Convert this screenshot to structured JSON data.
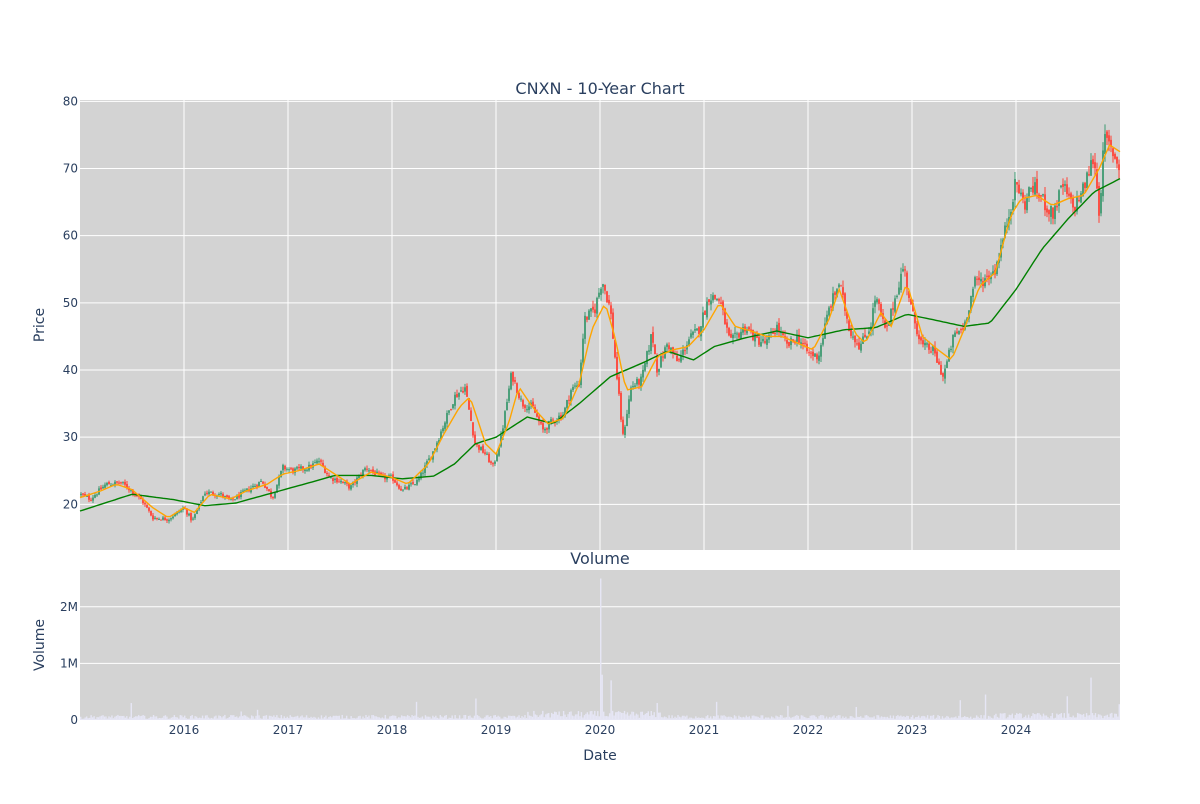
{
  "chart_data": [
    {
      "type": "candlestick",
      "title": "CNXN - 10-Year Chart",
      "ylabel": "Price",
      "xlim": [
        2015.0,
        2025.0
      ],
      "ylim": [
        13.2,
        80.2
      ],
      "yticks": [
        20,
        30,
        40,
        50,
        60,
        70,
        80
      ],
      "xticks": [
        2016,
        2017,
        2018,
        2019,
        2020,
        2021,
        2022,
        2023,
        2024
      ],
      "grid": true,
      "background": "#d3d3d3",
      "colors": {
        "up": "#3d9970",
        "down": "#ff4136",
        "ma_short": "#ffa500",
        "ma_long": "#008000"
      },
      "price_path": [
        [
          2015.0,
          21.5
        ],
        [
          2015.1,
          20.8
        ],
        [
          2015.25,
          23.0
        ],
        [
          2015.4,
          23.2
        ],
        [
          2015.5,
          22.0
        ],
        [
          2015.6,
          20.5
        ],
        [
          2015.7,
          18.0
        ],
        [
          2015.85,
          17.8
        ],
        [
          2016.0,
          19.5
        ],
        [
          2016.08,
          17.5
        ],
        [
          2016.2,
          21.8
        ],
        [
          2016.35,
          21.5
        ],
        [
          2016.45,
          20.5
        ],
        [
          2016.6,
          22.0
        ],
        [
          2016.75,
          23.5
        ],
        [
          2016.85,
          21.0
        ],
        [
          2016.95,
          25.5
        ],
        [
          2017.05,
          25.0
        ],
        [
          2017.2,
          25.5
        ],
        [
          2017.3,
          26.5
        ],
        [
          2017.4,
          24.0
        ],
        [
          2017.5,
          23.5
        ],
        [
          2017.6,
          22.5
        ],
        [
          2017.75,
          25.5
        ],
        [
          2017.9,
          24.0
        ],
        [
          2018.0,
          24.0
        ],
        [
          2018.1,
          22.0
        ],
        [
          2018.25,
          23.5
        ],
        [
          2018.4,
          28.0
        ],
        [
          2018.5,
          32.0
        ],
        [
          2018.6,
          36.0
        ],
        [
          2018.7,
          37.5
        ],
        [
          2018.8,
          29.0
        ],
        [
          2018.9,
          27.5
        ],
        [
          2018.97,
          25.5
        ],
        [
          2019.05,
          30.0
        ],
        [
          2019.15,
          39.5
        ],
        [
          2019.25,
          35.0
        ],
        [
          2019.35,
          34.5
        ],
        [
          2019.45,
          31.0
        ],
        [
          2019.55,
          32.5
        ],
        [
          2019.65,
          33.5
        ],
        [
          2019.72,
          37.0
        ],
        [
          2019.8,
          38.0
        ],
        [
          2019.85,
          47.5
        ],
        [
          2019.95,
          49.0
        ],
        [
          2020.02,
          53.5
        ],
        [
          2020.1,
          49.0
        ],
        [
          2020.15,
          41.0
        ],
        [
          2020.22,
          30.0
        ],
        [
          2020.3,
          37.5
        ],
        [
          2020.4,
          38.5
        ],
        [
          2020.5,
          45.5
        ],
        [
          2020.55,
          40.0
        ],
        [
          2020.65,
          44.0
        ],
        [
          2020.75,
          41.0
        ],
        [
          2020.85,
          44.5
        ],
        [
          2020.95,
          46.0
        ],
        [
          2021.05,
          51.0
        ],
        [
          2021.15,
          50.5
        ],
        [
          2021.25,
          44.0
        ],
        [
          2021.4,
          46.5
        ],
        [
          2021.5,
          44.5
        ],
        [
          2021.6,
          44.0
        ],
        [
          2021.7,
          46.5
        ],
        [
          2021.8,
          43.5
        ],
        [
          2021.9,
          45.0
        ],
        [
          2022.0,
          42.5
        ],
        [
          2022.1,
          42.0
        ],
        [
          2022.2,
          49.0
        ],
        [
          2022.3,
          53.0
        ],
        [
          2022.4,
          46.0
        ],
        [
          2022.5,
          43.5
        ],
        [
          2022.6,
          46.5
        ],
        [
          2022.65,
          51.0
        ],
        [
          2022.75,
          45.5
        ],
        [
          2022.85,
          51.5
        ],
        [
          2022.92,
          55.5
        ],
        [
          2023.0,
          48.5
        ],
        [
          2023.1,
          43.5
        ],
        [
          2023.2,
          43.0
        ],
        [
          2023.3,
          39.0
        ],
        [
          2023.4,
          45.0
        ],
        [
          2023.5,
          46.5
        ],
        [
          2023.6,
          53.0
        ],
        [
          2023.7,
          53.5
        ],
        [
          2023.8,
          55.0
        ],
        [
          2023.9,
          61.0
        ],
        [
          2024.0,
          68.0
        ],
        [
          2024.08,
          64.5
        ],
        [
          2024.15,
          67.5
        ],
        [
          2024.25,
          65.5
        ],
        [
          2024.35,
          63.0
        ],
        [
          2024.45,
          67.5
        ],
        [
          2024.55,
          64.0
        ],
        [
          2024.65,
          67.0
        ],
        [
          2024.75,
          72.0
        ],
        [
          2024.8,
          63.5
        ],
        [
          2024.85,
          74.5
        ],
        [
          2024.93,
          72.5
        ],
        [
          2025.0,
          70.0
        ]
      ],
      "ma_short_path": [
        [
          2015.0,
          21.0
        ],
        [
          2015.2,
          22.0
        ],
        [
          2015.35,
          23.0
        ],
        [
          2015.5,
          22.2
        ],
        [
          2015.7,
          19.5
        ],
        [
          2015.85,
          18.0
        ],
        [
          2016.0,
          19.5
        ],
        [
          2016.1,
          18.8
        ],
        [
          2016.25,
          21.5
        ],
        [
          2016.45,
          20.8
        ],
        [
          2016.6,
          22.0
        ],
        [
          2016.8,
          23.0
        ],
        [
          2016.95,
          24.5
        ],
        [
          2017.1,
          25.0
        ],
        [
          2017.3,
          26.0
        ],
        [
          2017.45,
          24.5
        ],
        [
          2017.6,
          23.0
        ],
        [
          2017.8,
          24.8
        ],
        [
          2018.0,
          24.0
        ],
        [
          2018.15,
          23.0
        ],
        [
          2018.35,
          26.0
        ],
        [
          2018.5,
          30.5
        ],
        [
          2018.65,
          34.5
        ],
        [
          2018.75,
          36.0
        ],
        [
          2018.9,
          29.0
        ],
        [
          2019.0,
          27.5
        ],
        [
          2019.12,
          32.0
        ],
        [
          2019.22,
          37.5
        ],
        [
          2019.35,
          34.5
        ],
        [
          2019.5,
          32.0
        ],
        [
          2019.65,
          32.8
        ],
        [
          2019.8,
          38.0
        ],
        [
          2019.92,
          46.0
        ],
        [
          2020.05,
          50.0
        ],
        [
          2020.15,
          44.5
        ],
        [
          2020.25,
          37.0
        ],
        [
          2020.4,
          37.5
        ],
        [
          2020.55,
          42.0
        ],
        [
          2020.7,
          43.0
        ],
        [
          2020.85,
          43.5
        ],
        [
          2021.0,
          46.0
        ],
        [
          2021.15,
          50.0
        ],
        [
          2021.3,
          46.5
        ],
        [
          2021.45,
          45.8
        ],
        [
          2021.6,
          45.0
        ],
        [
          2021.75,
          45.0
        ],
        [
          2021.9,
          44.0
        ],
        [
          2022.05,
          43.0
        ],
        [
          2022.2,
          47.5
        ],
        [
          2022.3,
          52.0
        ],
        [
          2022.45,
          45.5
        ],
        [
          2022.55,
          44.0
        ],
        [
          2022.7,
          48.5
        ],
        [
          2022.8,
          46.5
        ],
        [
          2022.95,
          53.0
        ],
        [
          2023.1,
          45.0
        ],
        [
          2023.25,
          43.0
        ],
        [
          2023.38,
          41.5
        ],
        [
          2023.5,
          46.0
        ],
        [
          2023.65,
          52.5
        ],
        [
          2023.8,
          54.5
        ],
        [
          2023.95,
          63.0
        ],
        [
          2024.05,
          65.5
        ],
        [
          2024.2,
          66.0
        ],
        [
          2024.35,
          64.5
        ],
        [
          2024.5,
          65.5
        ],
        [
          2024.65,
          66.0
        ],
        [
          2024.8,
          70.0
        ],
        [
          2024.9,
          73.5
        ],
        [
          2025.0,
          72.5
        ]
      ],
      "ma_long_path": [
        [
          2015.0,
          19.0
        ],
        [
          2015.5,
          21.5
        ],
        [
          2015.9,
          20.7
        ],
        [
          2016.2,
          19.8
        ],
        [
          2016.5,
          20.2
        ],
        [
          2016.85,
          21.7
        ],
        [
          2017.2,
          23.2
        ],
        [
          2017.45,
          24.3
        ],
        [
          2017.8,
          24.3
        ],
        [
          2018.1,
          23.8
        ],
        [
          2018.4,
          24.2
        ],
        [
          2018.6,
          26.0
        ],
        [
          2018.8,
          29.0
        ],
        [
          2019.0,
          30.0
        ],
        [
          2019.3,
          33.0
        ],
        [
          2019.55,
          32.0
        ],
        [
          2019.8,
          35.0
        ],
        [
          2020.1,
          39.0
        ],
        [
          2020.4,
          41.0
        ],
        [
          2020.65,
          42.8
        ],
        [
          2020.9,
          41.5
        ],
        [
          2021.1,
          43.5
        ],
        [
          2021.4,
          44.8
        ],
        [
          2021.7,
          45.8
        ],
        [
          2022.0,
          44.8
        ],
        [
          2022.35,
          46.0
        ],
        [
          2022.65,
          46.3
        ],
        [
          2022.95,
          48.3
        ],
        [
          2023.2,
          47.5
        ],
        [
          2023.5,
          46.5
        ],
        [
          2023.75,
          47.0
        ],
        [
          2024.0,
          52.0
        ],
        [
          2024.25,
          58.0
        ],
        [
          2024.5,
          62.5
        ],
        [
          2024.75,
          66.5
        ],
        [
          2025.0,
          68.5
        ]
      ]
    },
    {
      "type": "bar",
      "title": "Volume",
      "xlabel": "Date",
      "ylabel": "Volume",
      "ylim": [
        0,
        2650000
      ],
      "yticks": [
        0,
        1000000,
        2000000
      ],
      "ytick_labels": [
        "0",
        "1M",
        "2M"
      ],
      "xticks": [
        2016,
        2017,
        2018,
        2019,
        2020,
        2021,
        2022,
        2023,
        2024
      ],
      "grid": true,
      "color": "#e6e6f5",
      "spikes": [
        [
          2015.48,
          300000
        ],
        [
          2016.55,
          150000
        ],
        [
          2016.7,
          180000
        ],
        [
          2018.23,
          320000
        ],
        [
          2018.8,
          380000
        ],
        [
          2019.6,
          150000
        ],
        [
          2020.0,
          2500000
        ],
        [
          2020.02,
          800000
        ],
        [
          2020.1,
          700000
        ],
        [
          2020.55,
          300000
        ],
        [
          2021.12,
          320000
        ],
        [
          2021.8,
          250000
        ],
        [
          2022.45,
          230000
        ],
        [
          2023.45,
          350000
        ],
        [
          2023.7,
          450000
        ],
        [
          2024.48,
          420000
        ],
        [
          2024.72,
          750000
        ],
        [
          2024.98,
          280000
        ]
      ]
    }
  ]
}
